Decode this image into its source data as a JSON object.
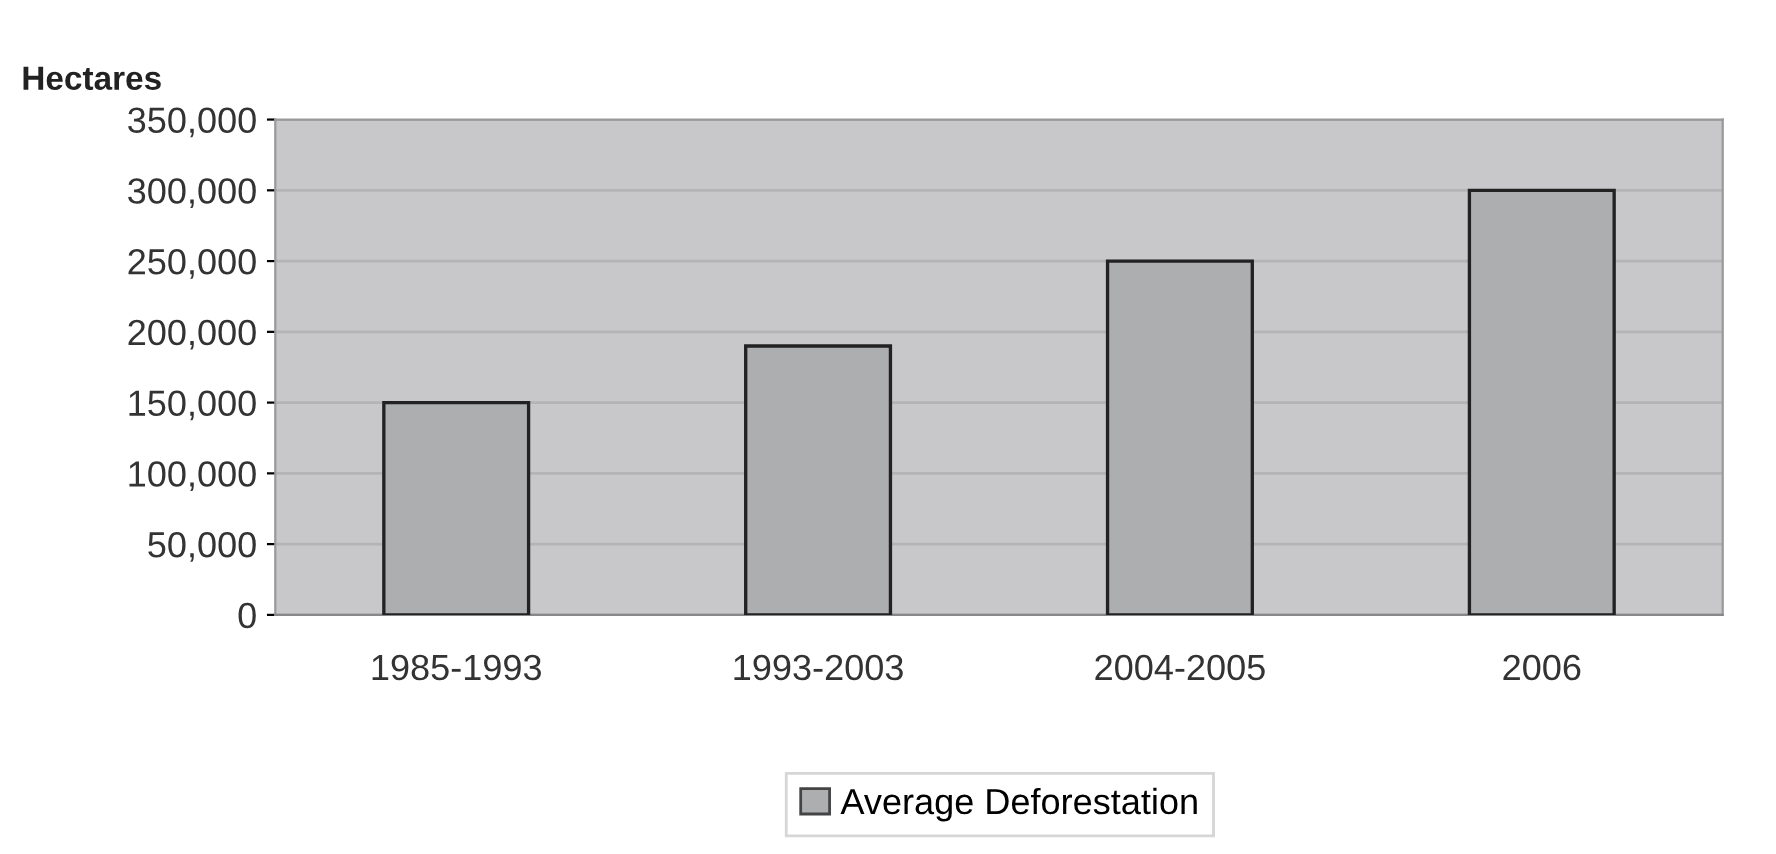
{
  "chart_data": {
    "type": "bar",
    "ylabel": "Hectares",
    "categories": [
      "1985-1993",
      "1993-2003",
      "2004-2005",
      "2006"
    ],
    "series": [
      {
        "name": "Average Deforestation",
        "color": "#adaeb0",
        "values": [
          150000,
          190000,
          250000,
          300000
        ]
      }
    ],
    "ylim": [
      0,
      350000
    ],
    "yticks": [
      {
        "value": 0,
        "label": "0"
      },
      {
        "value": 50000,
        "label": "50,000"
      },
      {
        "value": 100000,
        "label": "100,000"
      },
      {
        "value": 150000,
        "label": "150,000"
      },
      {
        "value": 200000,
        "label": "200,000"
      },
      {
        "value": 250000,
        "label": "250,000"
      },
      {
        "value": 300000,
        "label": "300,000"
      },
      {
        "value": 350000,
        "label": "350,000"
      }
    ],
    "grid": "y",
    "legend": "bottom"
  }
}
